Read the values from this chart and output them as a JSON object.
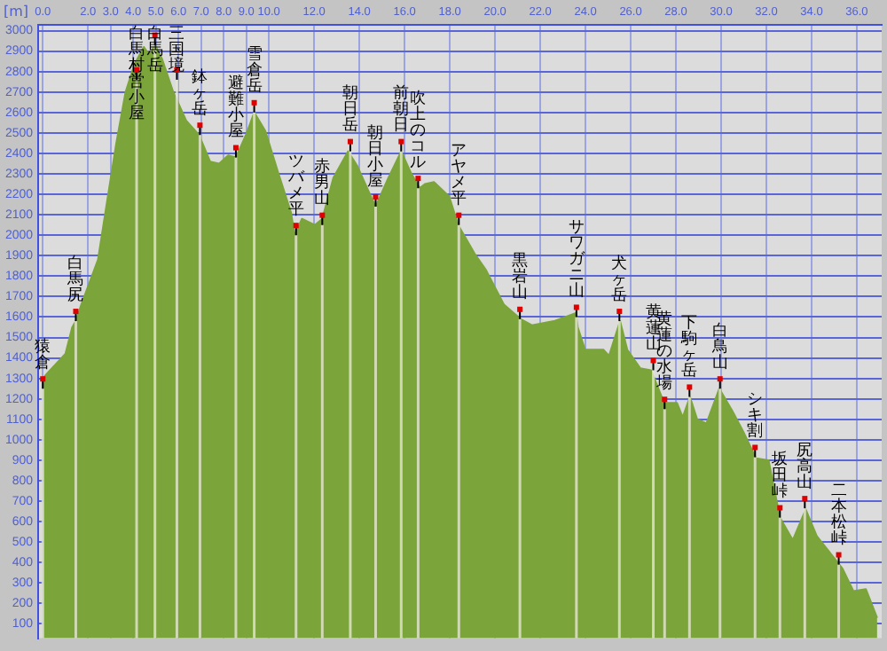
{
  "chart_data": {
    "type": "area",
    "ylabel": "[m]",
    "xlim": [
      -0.2,
      37.1
    ],
    "ylim": [
      30,
      3030
    ],
    "xticks": [
      {
        "value": 0,
        "label": "0.0"
      },
      {
        "value": 2,
        "label": "2.0"
      },
      {
        "value": 3,
        "label": "3.0"
      },
      {
        "value": 4,
        "label": "4.0"
      },
      {
        "value": 5,
        "label": "5.0"
      },
      {
        "value": 6,
        "label": "6.0"
      },
      {
        "value": 7,
        "label": "7.0"
      },
      {
        "value": 8,
        "label": "8.0"
      },
      {
        "value": 9,
        "label": "9.0"
      },
      {
        "value": 10,
        "label": "10.0"
      },
      {
        "value": 12,
        "label": "12.0"
      },
      {
        "value": 14,
        "label": "14.0"
      },
      {
        "value": 16,
        "label": "16.0"
      },
      {
        "value": 18,
        "label": "18.0"
      },
      {
        "value": 20,
        "label": "20.0"
      },
      {
        "value": 22,
        "label": "22.0"
      },
      {
        "value": 24,
        "label": "24.0"
      },
      {
        "value": 26,
        "label": "26.0"
      },
      {
        "value": 28,
        "label": "28.0"
      },
      {
        "value": 30,
        "label": "30.0"
      },
      {
        "value": 32,
        "label": "32.0"
      },
      {
        "value": 34,
        "label": "34.0"
      },
      {
        "value": 36,
        "label": "36.0"
      }
    ],
    "yticks": [
      100,
      200,
      300,
      400,
      500,
      600,
      700,
      800,
      900,
      1000,
      1100,
      1200,
      1300,
      1400,
      1500,
      1600,
      1700,
      1800,
      1900,
      2000,
      2100,
      2200,
      2300,
      2400,
      2500,
      2600,
      2700,
      2800,
      2900,
      3000
    ],
    "grid": true,
    "x": [
      0,
      0.24,
      1.0,
      1.3,
      1.46,
      1.7,
      2.44,
      2.85,
      3.25,
      3.66,
      4.07,
      4.47,
      4.72,
      4.96,
      5.28,
      5.77,
      6.34,
      6.91,
      7.4,
      7.8,
      8.2,
      8.54,
      9.02,
      9.35,
      9.84,
      10.4,
      10.98,
      11.14,
      11.46,
      12.03,
      12.36,
      12.85,
      13.5,
      13.9,
      14.47,
      14.72,
      15.28,
      15.85,
      16.26,
      16.67,
      16.9,
      17.3,
      17.97,
      18.37,
      19.1,
      19.6,
      20.4,
      21.14,
      21.63,
      22.6,
      23.58,
      23.66,
      23.98,
      24.8,
      25.04,
      25.53,
      25.85,
      26.42,
      26.9,
      27.48,
      28.05,
      28.3,
      28.62,
      28.94,
      29.35,
      29.92,
      30.5,
      30.98,
      31.54,
      32.1,
      32.6,
      33.17,
      33.74,
      34.23,
      35.37,
      35.85,
      36.4,
      36.9
    ],
    "series": [
      {
        "color": "#7ba43a",
        "values": [
          1300,
          1330,
          1420,
          1550,
          1580,
          1660,
          1880,
          2170,
          2450,
          2700,
          2840,
          2920,
          2880,
          2930,
          2860,
          2700,
          2560,
          2490,
          2360,
          2350,
          2390,
          2380,
          2500,
          2600,
          2510,
          2310,
          2110,
          2000,
          2080,
          2050,
          2080,
          2280,
          2410,
          2340,
          2200,
          2140,
          2280,
          2410,
          2310,
          2230,
          2250,
          2260,
          2190,
          2050,
          1910,
          1830,
          1660,
          1590,
          1560,
          1580,
          1620,
          1550,
          1440,
          1440,
          1410,
          1580,
          1440,
          1350,
          1340,
          1180,
          1180,
          1110,
          1210,
          1100,
          1080,
          1250,
          1140,
          1040,
          910,
          900,
          620,
          510,
          660,
          530,
          370,
          260,
          270,
          130
        ]
      }
    ],
    "annotations": [
      {
        "text": "猿倉",
        "x": 0,
        "y": 1250
      },
      {
        "text": "白馬尻",
        "x": 1.46,
        "y": 1580
      },
      {
        "text": "白馬村営小屋",
        "x": 4.15,
        "y": 2760
      },
      {
        "text": "白馬岳",
        "x": 4.96,
        "y": 2930
      },
      {
        "text": "三国境",
        "x": 5.93,
        "y": 2760
      },
      {
        "text": "鉢ヶ岳",
        "x": 6.95,
        "y": 2490
      },
      {
        "text": "避難小屋",
        "x": 8.54,
        "y": 2380
      },
      {
        "text": "雪倉岳",
        "x": 9.35,
        "y": 2600
      },
      {
        "text": "ツバメ平",
        "x": 11.2,
        "y": 2000
      },
      {
        "text": "赤男山",
        "x": 12.36,
        "y": 2050
      },
      {
        "text": "朝日岳",
        "x": 13.6,
        "y": 2410
      },
      {
        "text": "朝日小屋",
        "x": 14.72,
        "y": 2140
      },
      {
        "text": "前朝日",
        "x": 15.85,
        "y": 2410
      },
      {
        "text": "吹上のコル",
        "x": 16.6,
        "y": 2230
      },
      {
        "text": "アヤメ平",
        "x": 18.4,
        "y": 2050
      },
      {
        "text": "黒岩山",
        "x": 21.1,
        "y": 1590
      },
      {
        "text": "サワガニ山",
        "x": 23.6,
        "y": 1600
      },
      {
        "text": "犬ヶ岳",
        "x": 25.5,
        "y": 1580
      },
      {
        "text": "黄蓮山",
        "x": 27.0,
        "y": 1340
      },
      {
        "text": "黄蓮の水場",
        "x": 27.5,
        "y": 1150
      },
      {
        "text": "下駒ヶ岳",
        "x": 28.6,
        "y": 1210
      },
      {
        "text": "白鳥山",
        "x": 29.95,
        "y": 1250
      },
      {
        "text": "シキ割",
        "x": 31.5,
        "y": 915
      },
      {
        "text": "坂田峠",
        "x": 32.6,
        "y": 620
      },
      {
        "text": "尻高山",
        "x": 33.7,
        "y": 665
      },
      {
        "text": "二本松峠",
        "x": 35.2,
        "y": 390
      }
    ]
  }
}
